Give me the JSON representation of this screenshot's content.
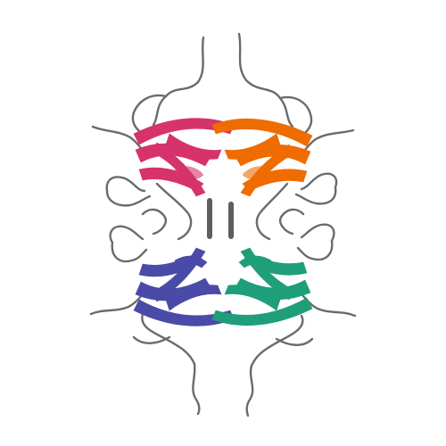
{
  "image": {
    "background": "#ffffff",
    "subunits": [
      {
        "name": "subunit-top-left",
        "color": "#d6336c"
      },
      {
        "name": "subunit-top-right",
        "color": "#ef6c00"
      },
      {
        "name": "subunit-bottom-left",
        "color": "#4a4aa8"
      },
      {
        "name": "subunit-bottom-right",
        "color": "#1f9e7a"
      }
    ],
    "loop_color": "#6b6b6b",
    "helix_color": "#5e5e5e"
  }
}
